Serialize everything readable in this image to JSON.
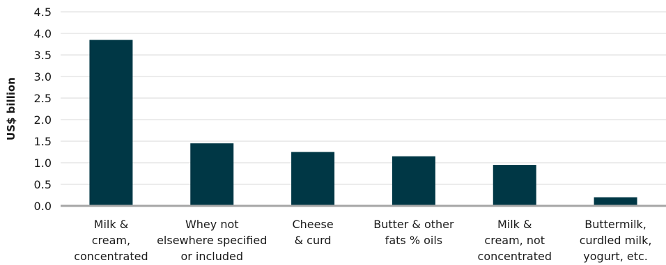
{
  "chart_data": {
    "type": "bar",
    "categories": [
      [
        "Milk &",
        "cream,",
        "concentrated"
      ],
      [
        "Whey not",
        "elsewhere specified",
        "or included"
      ],
      [
        "Cheese",
        "& curd"
      ],
      [
        "Butter & other",
        "fats % oils"
      ],
      [
        "Milk &",
        "cream, not",
        "concentrated"
      ],
      [
        "Buttermilk,",
        "curdled milk,",
        "yogurt, etc."
      ]
    ],
    "values": [
      3.85,
      1.45,
      1.25,
      1.15,
      0.95,
      0.2
    ],
    "ylabel": "US$ billion",
    "ylim": [
      0,
      4.5
    ],
    "yticks": [
      "0.0",
      "0.5",
      "1.0",
      "1.5",
      "2.0",
      "2.5",
      "3.0",
      "3.5",
      "4.0",
      "4.5"
    ],
    "grid": true,
    "colors": {
      "bar": "#003745",
      "grid": "#d9d9d9",
      "axis": "#a6a6a6"
    }
  }
}
